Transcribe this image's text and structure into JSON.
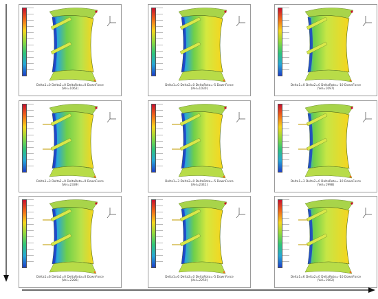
{
  "panels": [
    {
      "row": 0,
      "col": 0,
      "label": "Delta1=0  Delta2=0  DeltaRoto=0  DownForce",
      "value": "(Vel=1062)"
    },
    {
      "row": 0,
      "col": 1,
      "label": "Delta1=0  Delta2=0  DeltaRoto=-5  DownForce",
      "value": "(Vel=1030)"
    },
    {
      "row": 0,
      "col": 2,
      "label": "Delta1=0  Delta2=0  DeltaRoto=-10  DownForce",
      "value": "(Vel=1097)"
    },
    {
      "row": 1,
      "col": 0,
      "label": "Delta1=3  Delta2=0  DeltaRoto=0  DownForce",
      "value": "(Vel=2339)"
    },
    {
      "row": 1,
      "col": 1,
      "label": "Delta1=3  Delta2=0  DeltaRoto=-5  DownForce",
      "value": "(Vel=2341)"
    },
    {
      "row": 1,
      "col": 2,
      "label": "Delta1=3  Delta2=0  DeltaRoto=-10  DownForce",
      "value": "(Vel=1998)"
    },
    {
      "row": 2,
      "col": 0,
      "label": "Delta1=6  Delta2=0  DeltaRoto=0  DownForce",
      "value": "(Vel=2286)"
    },
    {
      "row": 2,
      "col": 1,
      "label": "Delta1=6  Delta2=0  DeltaRoto=-5  DownForce",
      "value": "(Vel=2250)"
    },
    {
      "row": 2,
      "col": 2,
      "label": "Delta1=6  Delta2=0  DeltaRoto=-10  DownForce",
      "value": "(Vel=1962)"
    }
  ],
  "colors": {
    "high": "#c8102e",
    "mid": "#f6d51e",
    "green": "#6fcf4a",
    "low": "#1d3fc7",
    "border": "#9a9a9a",
    "arrow": "#111111"
  },
  "icons": {
    "axis_triad": "axis-triad-icon",
    "down_arrow": "arrow-down-icon",
    "right_arrow": "arrow-right-icon"
  }
}
